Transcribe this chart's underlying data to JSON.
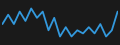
{
  "x": [
    0,
    1,
    2,
    3,
    4,
    5,
    6,
    7,
    8,
    9,
    10,
    11,
    12,
    13,
    14,
    15,
    16,
    17,
    18,
    19,
    20
  ],
  "y": [
    6,
    9,
    6,
    10,
    7,
    11,
    8,
    10,
    4,
    8,
    2,
    5,
    2,
    4,
    3,
    5,
    3,
    6,
    2,
    4,
    10
  ],
  "line_color": "#3399dd",
  "bg_color": "#1a1a1a",
  "linewidth": 1.3
}
